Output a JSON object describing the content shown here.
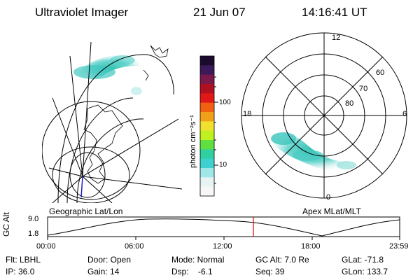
{
  "header": {
    "instrument": "Ultraviolet Imager",
    "date": "21 Jun 07",
    "time": "14:16:41 UT"
  },
  "colorbar": {
    "unit_label": "photon cm⁻²s⁻¹",
    "ticks": [
      "100",
      "10"
    ],
    "colors": [
      "#1a0a2e",
      "#3c1a5a",
      "#7a1a4a",
      "#b01020",
      "#e01818",
      "#f06010",
      "#f0a018",
      "#f0e030",
      "#c0f020",
      "#60e040",
      "#30d0a0",
      "#40d0d0",
      "#a0e8e8",
      "#e8f4f4",
      "#f6f8f8"
    ]
  },
  "left_panel": {
    "caption": "Geographic Lat/Lon"
  },
  "right_panel": {
    "caption": "Apex  MLat/MLT",
    "mlt_labels": [
      "12",
      "18",
      "6",
      "0"
    ],
    "lat_labels": [
      "60",
      "70",
      "80"
    ]
  },
  "timeline": {
    "ylabel": "GC Alt",
    "y_ticks": [
      "9.0",
      "1.8"
    ],
    "x_ticks": [
      "00:00",
      "06:00",
      "12:00",
      "18:00",
      "23:59"
    ],
    "marker_color": "#e00000"
  },
  "info": {
    "flt": "Flt: LBHL",
    "ip": "IP: 36.0",
    "door": "Door: Open",
    "gain": "Gain: 14",
    "mode": "Mode: Normal",
    "dsp": "Dsp:    -6.1",
    "gcalt": "GC Alt: 7.0 Re",
    "seq": "Seq: 39",
    "glat": "GLat: -71.8",
    "glon": "GLon: 133.7"
  }
}
